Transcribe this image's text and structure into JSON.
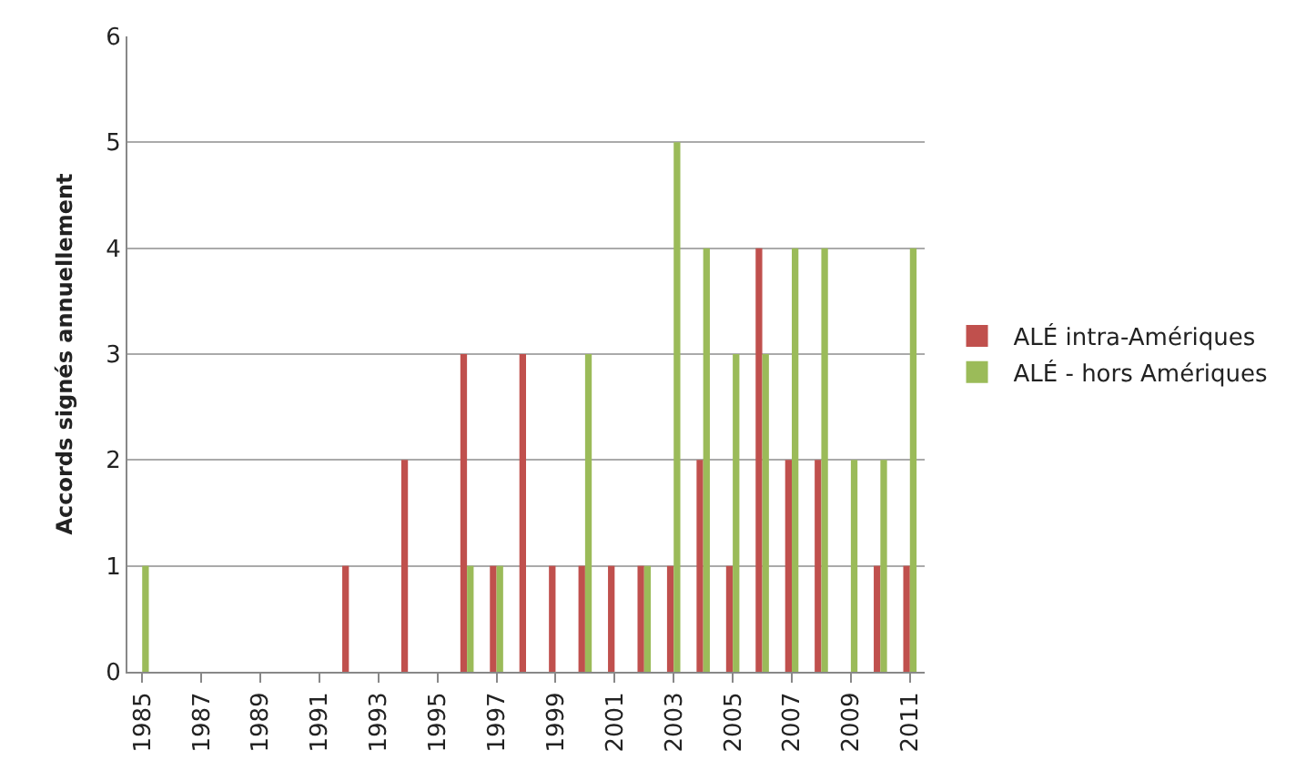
{
  "chart_data": {
    "type": "bar",
    "ylabel": "Accords signés annuellement",
    "categories": [
      "1985",
      null,
      "1987",
      null,
      "1989",
      null,
      "1991",
      null,
      "1993",
      null,
      "1995",
      null,
      "1997",
      null,
      "1999",
      null,
      "2001",
      null,
      "2003",
      null,
      "2005",
      null,
      "2007",
      null,
      "2009",
      null,
      "2011"
    ],
    "series": [
      {
        "name": "ALÉ intra-Amériques",
        "color": "#c0504d",
        "values": [
          0,
          0,
          0,
          0,
          0,
          0,
          0,
          1,
          0,
          2,
          0,
          3,
          1,
          3,
          1,
          1,
          1,
          1,
          1,
          2,
          1,
          4,
          2,
          2,
          0,
          1,
          1
        ]
      },
      {
        "name": "ALÉ - hors Amériques",
        "color": "#9bbb59",
        "values": [
          1,
          0,
          0,
          0,
          0,
          0,
          0,
          0,
          0,
          0,
          0,
          1,
          1,
          0,
          0,
          3,
          0,
          1,
          5,
          4,
          3,
          3,
          4,
          4,
          2,
          2,
          4
        ]
      }
    ],
    "ylim": [
      0,
      6
    ],
    "yticks": [
      0,
      1,
      2,
      3,
      4,
      5,
      6
    ],
    "grid": "y",
    "legend": "right"
  }
}
